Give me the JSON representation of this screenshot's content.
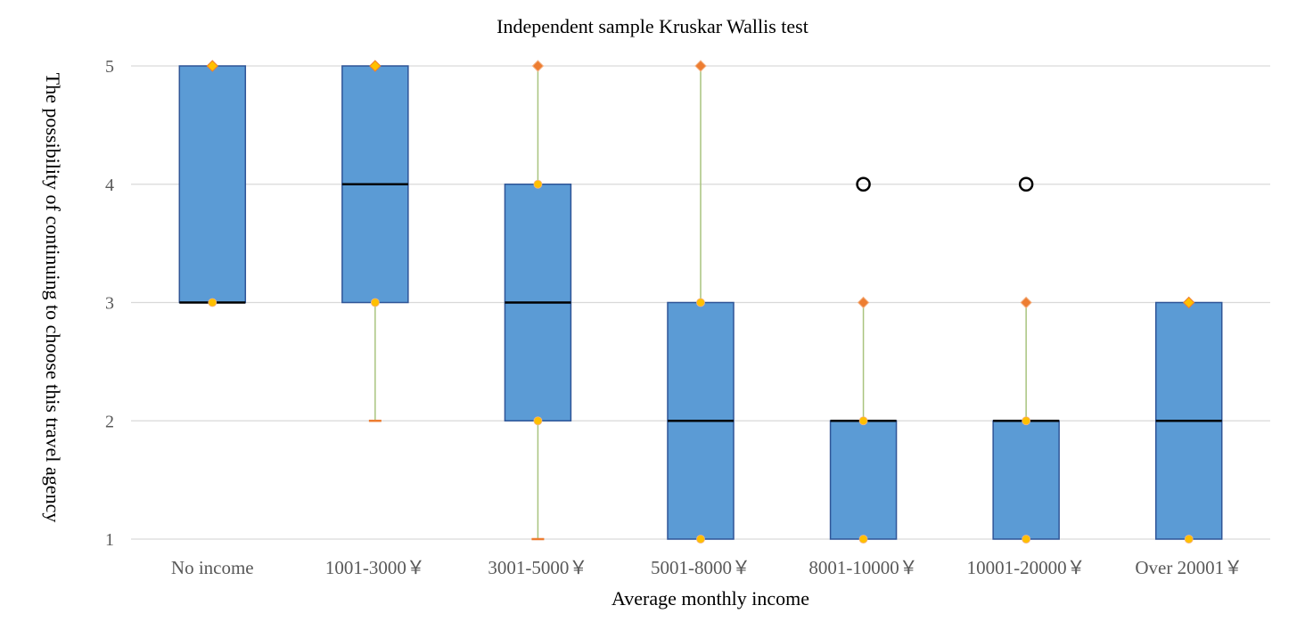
{
  "chart_data": {
    "type": "box",
    "title": "Independent sample Kruskar Wallis test",
    "xlabel": "Average monthly income",
    "ylabel": "The possibility of continuing to choose this travel agency",
    "ylim": [
      1,
      5
    ],
    "yticks": [
      "1",
      "2",
      "3",
      "4",
      "5"
    ],
    "grid": true,
    "categories": [
      "No income",
      "1001-3000￥",
      "3001-5000￥",
      "5001-8000￥",
      "8001-10000￥",
      "10001-20000￥",
      "Over 20001￥"
    ],
    "boxes": [
      {
        "min": 3,
        "q1": 3,
        "median": 3,
        "q3": 5,
        "max": 5,
        "outliers": []
      },
      {
        "min": 2,
        "q1": 3,
        "median": 4,
        "q3": 5,
        "max": 5,
        "outliers": []
      },
      {
        "min": 1,
        "q1": 2,
        "median": 3,
        "q3": 4,
        "max": 5,
        "outliers": []
      },
      {
        "min": 1,
        "q1": 1,
        "median": 2,
        "q3": 3,
        "max": 5,
        "outliers": []
      },
      {
        "min": 1,
        "q1": 1,
        "median": 2,
        "q3": 2,
        "max": 3,
        "outliers": [
          4
        ]
      },
      {
        "min": 1,
        "q1": 1,
        "median": 2,
        "q3": 2,
        "max": 3,
        "outliers": [
          4
        ]
      },
      {
        "min": 1,
        "q1": 1,
        "median": 2,
        "q3": 3,
        "max": 3,
        "outliers": []
      }
    ],
    "colors": {
      "box_fill": "#5B9BD5",
      "box_stroke": "#2F5597",
      "median": "#000000",
      "whisker": "#A9C47F",
      "whisker_cap": "#ED7D31",
      "max_marker": "#ED7D31",
      "quartile_marker": "#FFC000",
      "gridline": "#D9D9D9"
    }
  }
}
